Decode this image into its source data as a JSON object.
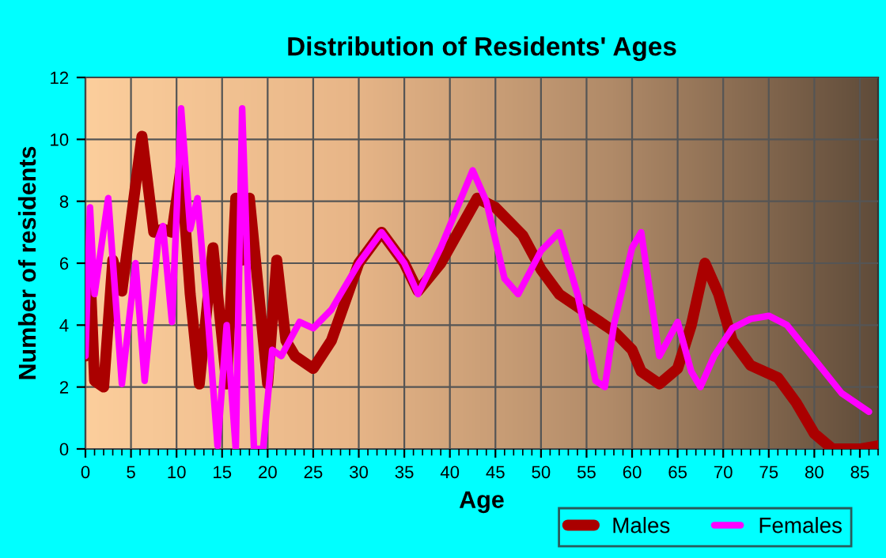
{
  "chart_data": {
    "type": "line",
    "title": "Distribution of Residents' Ages",
    "xlabel": "Age",
    "ylabel": "Number of residents",
    "series": [
      {
        "name": "Males",
        "color": "#aa0000",
        "x": [
          0,
          0.5,
          1,
          2,
          3,
          4,
          6.2,
          7.5,
          8.5,
          9.5,
          10.5,
          11.5,
          12.5,
          14,
          15.5,
          16.5,
          17.2,
          18,
          20,
          21,
          22,
          23,
          25,
          27,
          30,
          32.5,
          35,
          36.5,
          39,
          43,
          45,
          48,
          50,
          52,
          55,
          58,
          60,
          61,
          63,
          65,
          66.5,
          68,
          69.5,
          71,
          73,
          76,
          78,
          80,
          82,
          85,
          87
        ],
        "values": [
          3,
          5.8,
          2.2,
          2,
          6.1,
          5.1,
          10.1,
          7,
          7.1,
          7,
          9.1,
          5,
          2.1,
          6.5,
          2.1,
          8.1,
          6.1,
          8.1,
          2.1,
          6.1,
          3.5,
          3,
          2.6,
          3.5,
          6,
          7,
          6,
          5.1,
          6,
          8.1,
          7.8,
          6.9,
          5.8,
          5,
          4.4,
          3.8,
          3.2,
          2.5,
          2.1,
          2.6,
          4,
          6,
          5,
          3.5,
          2.7,
          2.3,
          1.5,
          0.5,
          0,
          0,
          0.1
        ]
      },
      {
        "name": "Females",
        "color": "#ff00ff",
        "x": [
          0,
          0.5,
          1,
          2.5,
          4,
          5.5,
          6.5,
          8,
          8.5,
          9.5,
          10.5,
          11.5,
          12.3,
          13.5,
          14.5,
          15.5,
          16.5,
          17.2,
          18,
          18.5,
          19.5,
          20.5,
          21.5,
          23.5,
          25,
          27,
          30,
          32.5,
          35,
          36.5,
          39,
          42.5,
          44,
          46,
          47.5,
          50,
          52,
          54,
          56,
          57,
          58,
          60,
          61,
          62,
          63,
          65,
          66.5,
          67.5,
          69,
          71,
          73,
          75,
          77,
          80,
          83,
          86
        ],
        "values": [
          3,
          7.8,
          5,
          8.1,
          2.1,
          6,
          2.2,
          6.8,
          7.2,
          4.1,
          11,
          7.1,
          8.1,
          4,
          0.1,
          4,
          0,
          11,
          4,
          0,
          0,
          3.2,
          3,
          4.1,
          3.9,
          4.5,
          6,
          7,
          6,
          5,
          6.5,
          9,
          8,
          5.5,
          5,
          6.4,
          7,
          5,
          2.2,
          2,
          4,
          6.5,
          7,
          5,
          3,
          4.1,
          2.5,
          2,
          3,
          3.9,
          4.2,
          4.3,
          4,
          2.9,
          1.8,
          1.2
        ]
      }
    ],
    "xlim": [
      0,
      87
    ],
    "xticks": [
      0,
      5,
      10,
      15,
      20,
      25,
      30,
      35,
      40,
      45,
      50,
      55,
      60,
      65,
      70,
      75,
      80,
      85
    ],
    "ylim": [
      0,
      12
    ],
    "yticks": [
      0,
      2,
      4,
      6,
      8,
      10,
      12
    ],
    "grid": true,
    "legend": "bottom right",
    "marker": "none",
    "line_style": "solid"
  }
}
